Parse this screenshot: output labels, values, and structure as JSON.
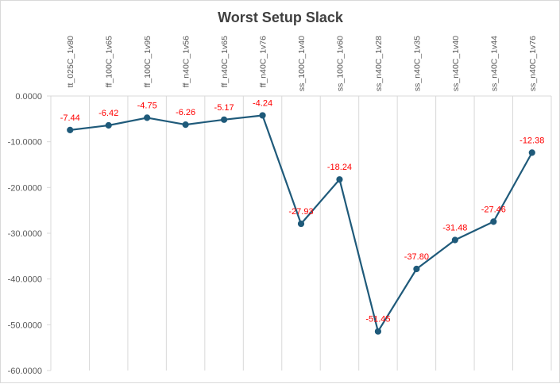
{
  "chart_data": {
    "type": "line",
    "title": "Worst Setup Slack",
    "categories": [
      "tt_025C_1v80",
      "ff_100C_1v65",
      "ff_100C_1v95",
      "ff_n40C_1v56",
      "ff_n40C_1v65",
      "ff_n40C_1v76",
      "ss_100C_1v40",
      "ss_100C_1v60",
      "ss_n40C_1v28",
      "ss_n40C_1v35",
      "ss_n40C_1v40",
      "ss_n40C_1v44",
      "ss_n40C_1v76"
    ],
    "series": [
      {
        "values": [
          -7.44,
          -6.42,
          -4.75,
          -6.26,
          -5.17,
          -4.24,
          -27.93,
          -18.24,
          -51.45,
          -37.8,
          -31.48,
          -27.46,
          -12.38
        ],
        "labels": [
          "-7.44",
          "-6.42",
          "-4.75",
          "-6.26",
          "-5.17",
          "-4.24",
          "-27.93",
          "-18.24",
          "-51.45",
          "-37.80",
          "-31.48",
          "-27.46",
          "-12.38"
        ]
      }
    ],
    "yticks": [
      "0.0000",
      "-10.0000",
      "-20.0000",
      "-30.0000",
      "-40.0000",
      "-50.0000",
      "-60.0000"
    ],
    "ytick_values": [
      0,
      -10,
      -20,
      -30,
      -40,
      -50,
      -60
    ],
    "ylim": [
      -60,
      0
    ],
    "xlabel": "",
    "ylabel": "",
    "grid": "vertical",
    "legend": "none",
    "x_axis_position": "top",
    "colors": {
      "line": "#1f5a7a",
      "marker": "#1f5a7a",
      "data_label": "#ff0000",
      "grid": "#d9d9d9",
      "text": "#595959",
      "title": "#404040"
    }
  }
}
